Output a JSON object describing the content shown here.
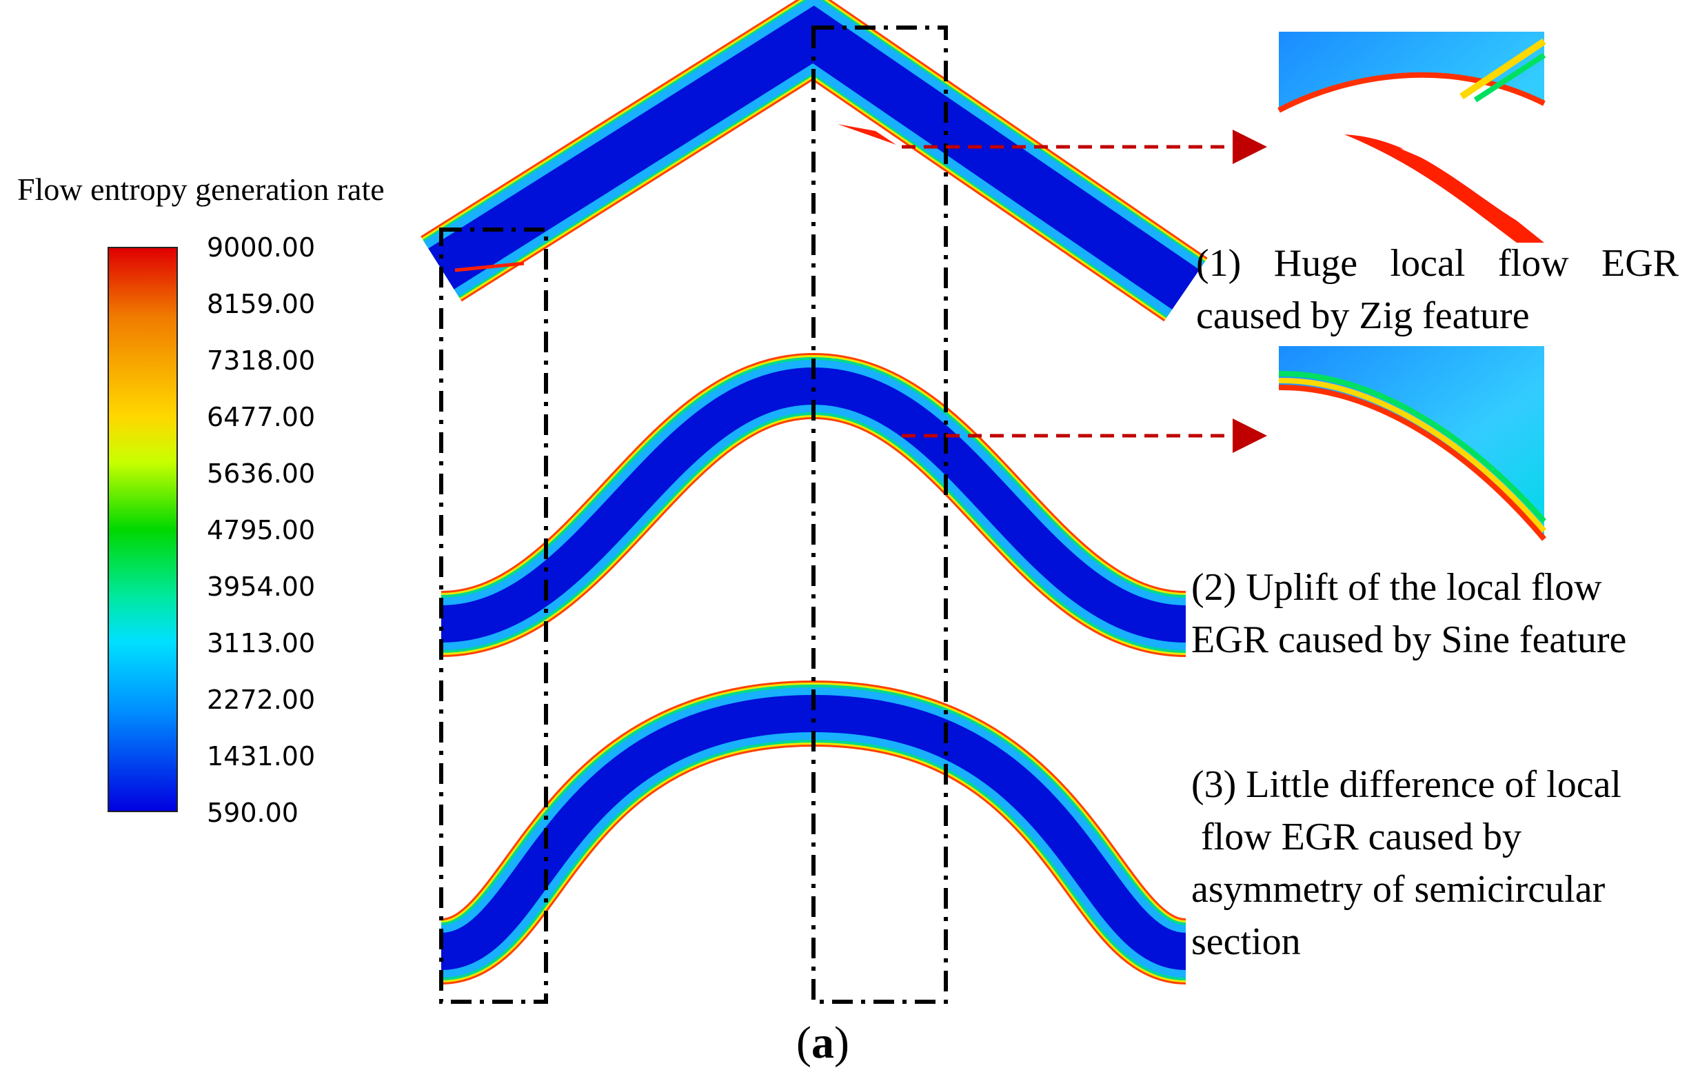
{
  "legend": {
    "title": "Flow entropy generation rate",
    "ticks": [
      "9000.00",
      "8159.00",
      "7318.00",
      "6477.00",
      "5636.00",
      "4795.00",
      "3954.00",
      "3113.00",
      "2272.00",
      "1431.00",
      "590.00"
    ],
    "colors": {
      "max": "#e00000",
      "mid": "#00d800",
      "min": "#0000e0"
    }
  },
  "annotations": {
    "zig": {
      "line1": "(1)  Huge  local  flow  EGR",
      "line2": "caused by Zig feature"
    },
    "sine": {
      "line1": "(2) Uplift of the local flow",
      "line2": "EGR caused by Sine feature"
    },
    "semicircular": {
      "line1": "(3) Little difference of local",
      "line2": " flow EGR caused by",
      "line3": "asymmetry of semicircular",
      "line4": "section"
    }
  },
  "caption": {
    "open": "(",
    "letter": "a",
    "close": ")"
  },
  "colors": {
    "arrow": "#c00000",
    "channel_core": "#0010d8",
    "channel_wall": "#ff3000"
  }
}
